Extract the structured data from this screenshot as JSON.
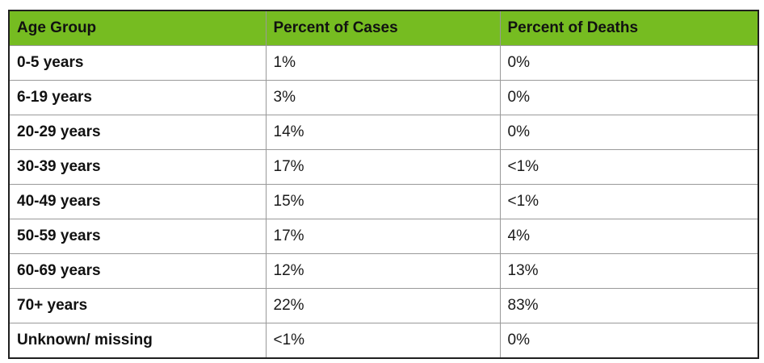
{
  "colors": {
    "header_bg": "#76bc21",
    "header_text": "#111111",
    "cell_text": "#1a1a1a",
    "grid_line": "#999999",
    "outer_border": "#1f1f1f",
    "row_bg": "#ffffff"
  },
  "chart_data": {
    "type": "table",
    "title": "",
    "columns": [
      "Age Group",
      "Percent of Cases",
      "Percent of Deaths"
    ],
    "rows": [
      [
        "0-5 years",
        "1%",
        "0%"
      ],
      [
        "6-19 years",
        "3%",
        "0%"
      ],
      [
        "20-29 years",
        "14%",
        "0%"
      ],
      [
        "30-39 years",
        "17%",
        "<1%"
      ],
      [
        "40-49 years",
        "15%",
        "<1%"
      ],
      [
        "50-59 years",
        "17%",
        "4%"
      ],
      [
        "60-69 years",
        "12%",
        "13%"
      ],
      [
        "70+ years",
        "22%",
        "83%"
      ],
      [
        "Unknown/ missing",
        "<1%",
        "0%"
      ]
    ]
  }
}
